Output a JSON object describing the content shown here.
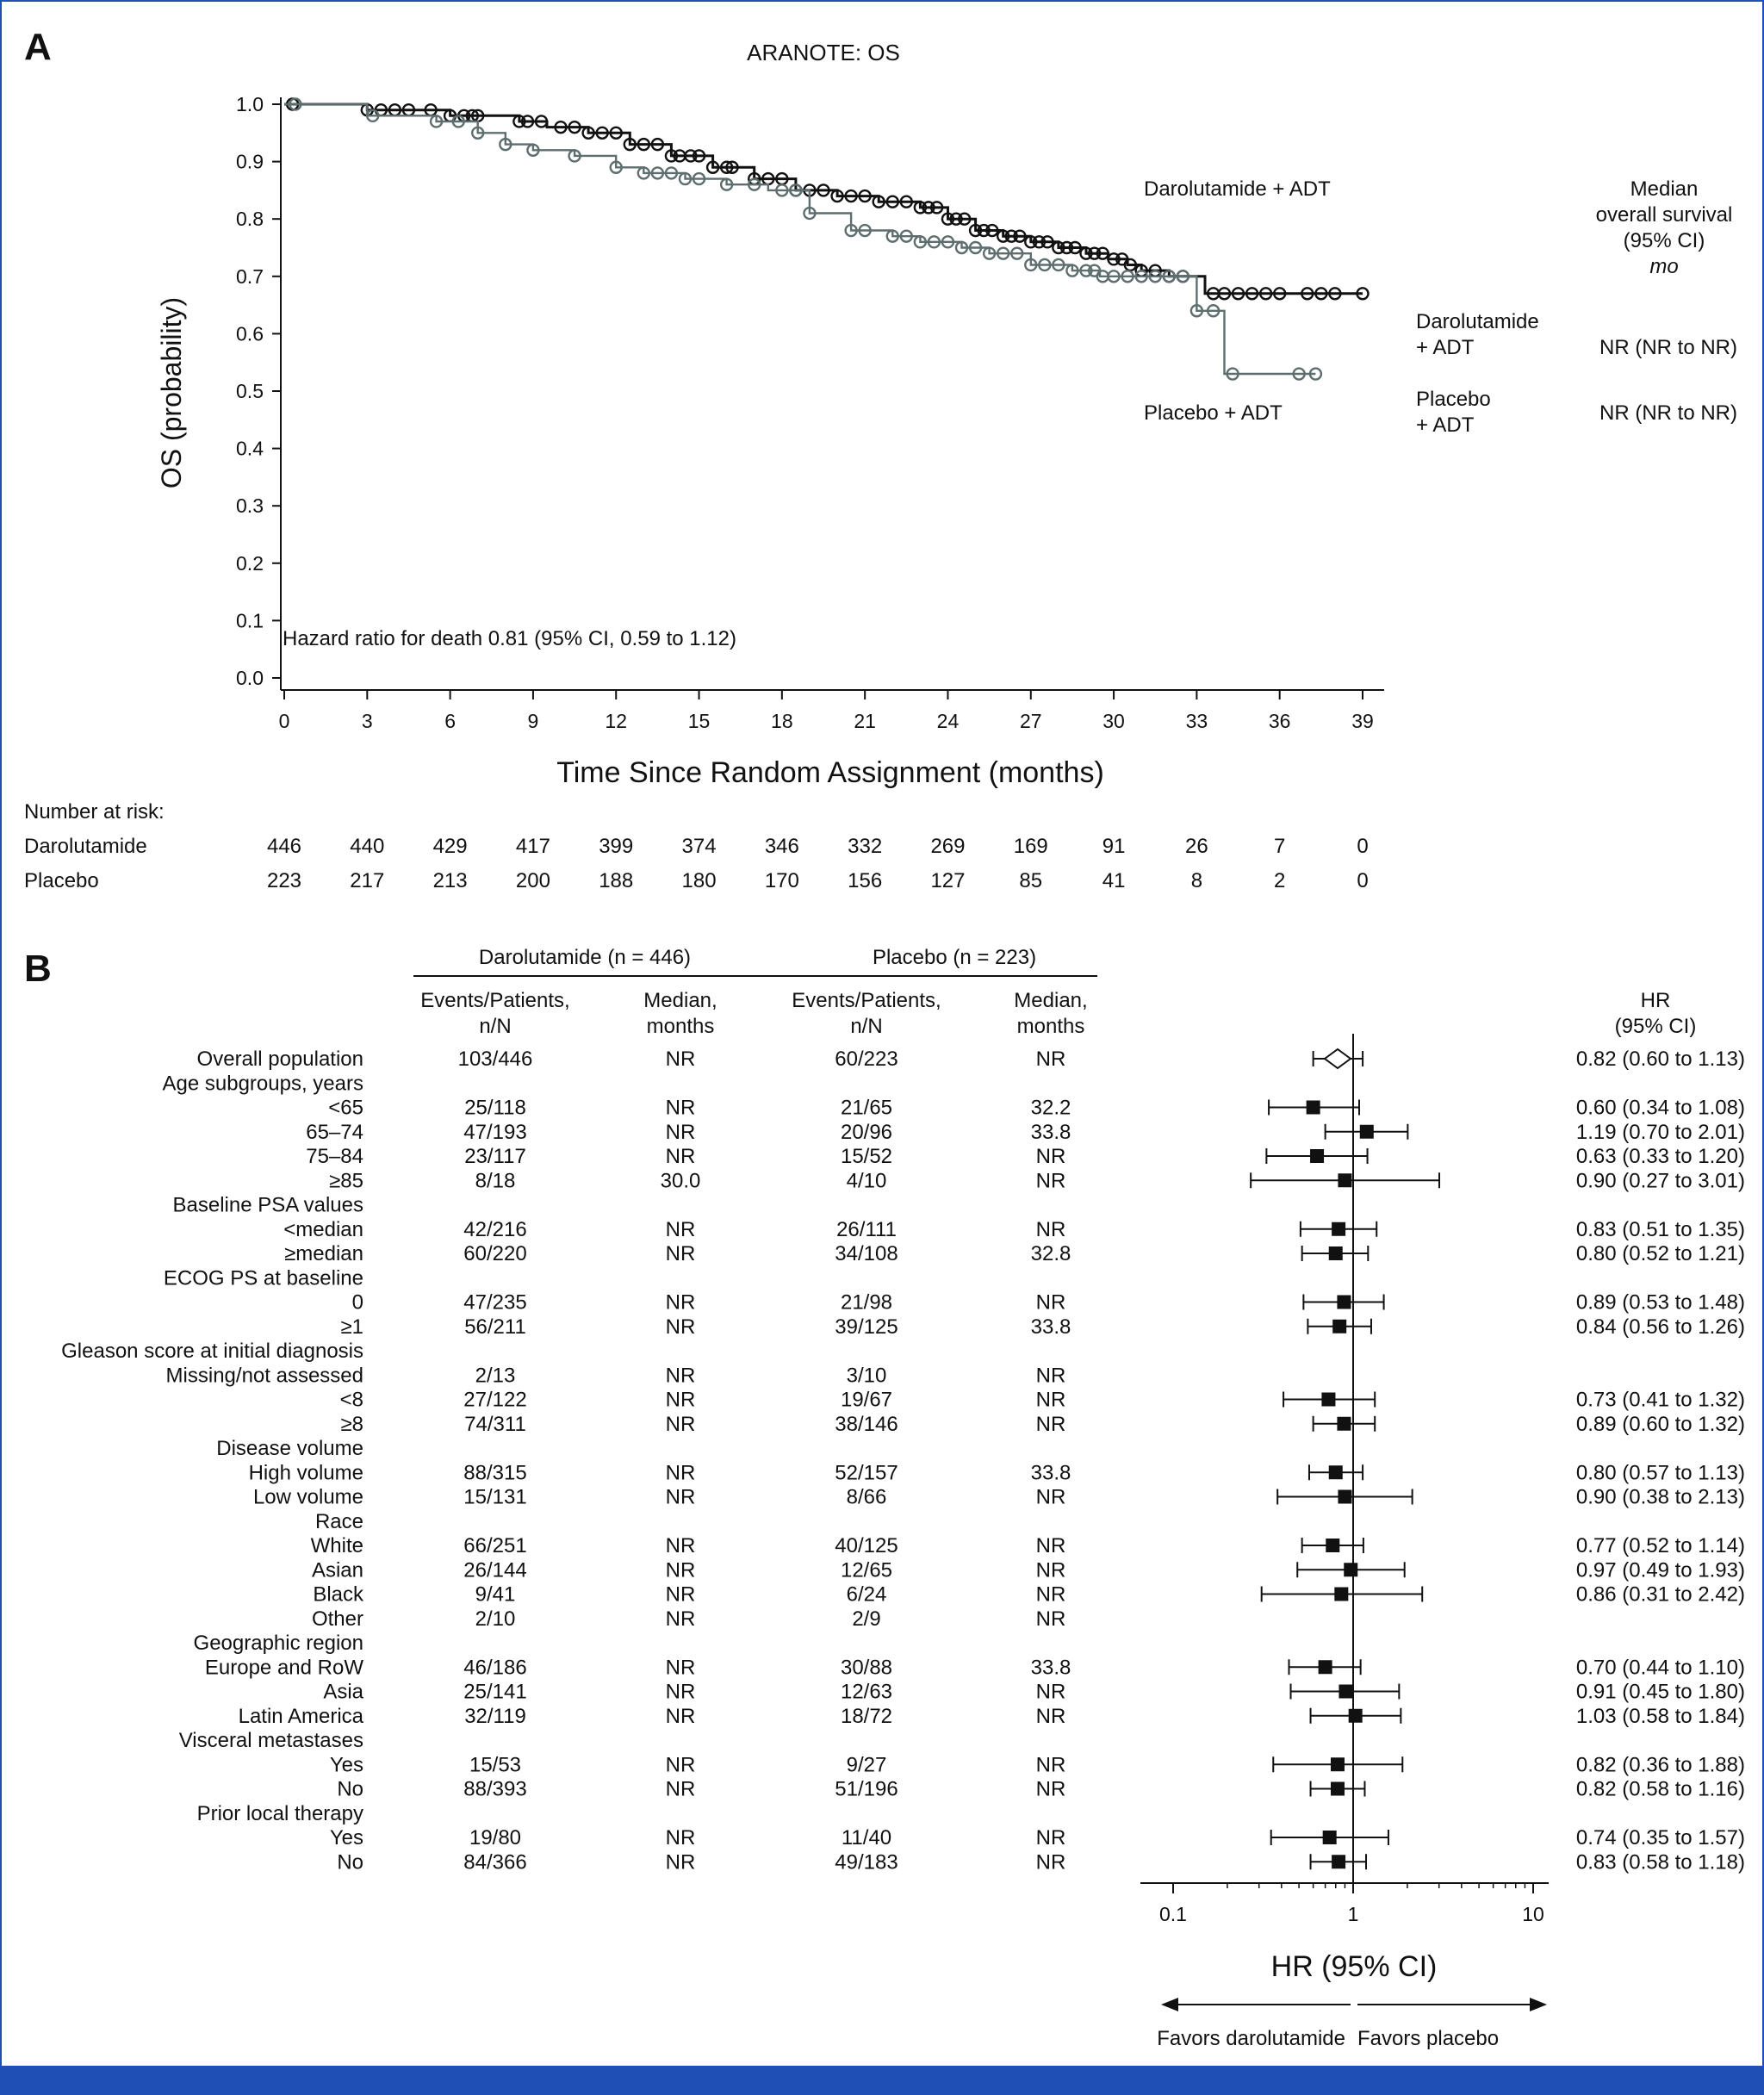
{
  "colors": {
    "darolutamide": "#111111",
    "placebo": "#5e6e6e",
    "frame": "#1f4fb4"
  },
  "panel_a_label": "A",
  "panel_b_label": "B",
  "chart_data": [
    {
      "type": "line",
      "subtype": "kaplan-meier",
      "title": "ARANOTE: OS",
      "xlabel": "Time Since Random Assignment (months)",
      "ylabel": "OS (probability)",
      "xlim": [
        0,
        39
      ],
      "ylim": [
        0.0,
        1.0
      ],
      "xticks": [
        0,
        3,
        6,
        9,
        12,
        15,
        18,
        21,
        24,
        27,
        30,
        33,
        36,
        39
      ],
      "yticks": [
        "0.0",
        "0.1",
        "0.2",
        "0.3",
        "0.4",
        "0.5",
        "0.6",
        "0.7",
        "0.8",
        "0.9",
        "1.0"
      ],
      "series": [
        {
          "name": "Darolutamide + ADT",
          "label_line": "Darolutamide + ADT",
          "x": [
            0,
            3,
            6,
            8.5,
            9.5,
            11,
            12.5,
            14,
            15.5,
            17,
            18.5,
            20,
            21.5,
            23,
            24,
            25,
            26,
            27,
            28,
            29,
            29.8,
            30.5,
            31,
            32,
            33,
            33.3,
            34,
            35,
            36,
            37,
            38,
            39
          ],
          "y": [
            1.0,
            0.99,
            0.98,
            0.97,
            0.96,
            0.95,
            0.93,
            0.91,
            0.89,
            0.87,
            0.85,
            0.84,
            0.83,
            0.82,
            0.8,
            0.78,
            0.77,
            0.76,
            0.75,
            0.74,
            0.73,
            0.72,
            0.71,
            0.7,
            0.7,
            0.67,
            0.67,
            0.67,
            0.67,
            0.67,
            0.67,
            0.67
          ],
          "censor_x": [
            0.3,
            3,
            3.5,
            4,
            4.5,
            5.3,
            6,
            6.5,
            6.8,
            7,
            8.5,
            8.8,
            9.3,
            10,
            10.5,
            11,
            11.5,
            12,
            12.5,
            13,
            13.5,
            14,
            14.3,
            14.7,
            15,
            15.5,
            16,
            16.2,
            17,
            17.5,
            18,
            18.5,
            19,
            19.5,
            20,
            20.5,
            21,
            21.5,
            22,
            22.5,
            23,
            23.3,
            23.6,
            24,
            24.3,
            24.6,
            25,
            25.3,
            25.6,
            26,
            26.3,
            26.6,
            27,
            27.3,
            27.6,
            28,
            28.3,
            28.6,
            29,
            29.3,
            29.6,
            30,
            30.3,
            30.6,
            31,
            31.5,
            32,
            32.5,
            33.6,
            34,
            34.5,
            35,
            35.5,
            36,
            37,
            37.5,
            38,
            39
          ]
        },
        {
          "name": "Placebo + ADT",
          "label_line": "Placebo + ADT",
          "x": [
            0,
            3,
            5.5,
            7,
            8,
            9,
            10.5,
            12,
            13,
            14.5,
            16,
            17.5,
            19,
            20.5,
            22,
            23,
            24.5,
            25.5,
            27,
            28.5,
            29.5,
            31,
            32.5,
            33,
            34,
            37.3
          ],
          "y": [
            1.0,
            0.98,
            0.97,
            0.95,
            0.93,
            0.92,
            0.91,
            0.89,
            0.88,
            0.87,
            0.86,
            0.85,
            0.81,
            0.78,
            0.77,
            0.76,
            0.75,
            0.74,
            0.72,
            0.71,
            0.7,
            0.7,
            0.7,
            0.64,
            0.53,
            0.53
          ],
          "censor_x": [
            0.4,
            3.2,
            5.5,
            6.3,
            7,
            8,
            9,
            10.5,
            12,
            13,
            13.5,
            14,
            14.5,
            15,
            16,
            17,
            18,
            18.5,
            19,
            20.5,
            21,
            22,
            22.5,
            23,
            23.5,
            24,
            24.5,
            25,
            25.5,
            26,
            26.5,
            27,
            27.5,
            28,
            28.5,
            29,
            29.3,
            29.6,
            30,
            30.5,
            31,
            31.5,
            32,
            32.5,
            33,
            33.6,
            34.3,
            36.7,
            37.3
          ]
        }
      ],
      "hazard_ratio_text": "Hazard ratio for death 0.81 (95% CI, 0.59 to 1.12)",
      "median_header": [
        "Median",
        "overall survival",
        "(95% CI)",
        "mo"
      ],
      "median_rows": [
        {
          "arm": [
            "Darolutamide",
            "+ ADT"
          ],
          "value": "NR (NR to NR)"
        },
        {
          "arm": [
            "Placebo",
            "+ ADT"
          ],
          "value": "NR (NR to NR)"
        }
      ],
      "risk_table": {
        "title": "Number at risk:",
        "rows": [
          {
            "label": "Darolutamide",
            "values": [
              "446",
              "440",
              "429",
              "417",
              "399",
              "374",
              "346",
              "332",
              "269",
              "169",
              "91",
              "26",
              "7",
              "0"
            ]
          },
          {
            "label": "Placebo",
            "values": [
              "223",
              "217",
              "213",
              "200",
              "188",
              "180",
              "170",
              "156",
              "127",
              "85",
              "41",
              "8",
              "2",
              "0"
            ]
          }
        ]
      }
    },
    {
      "type": "forest",
      "headers": {
        "dar_group": "Darolutamide (n = 446)",
        "pla_group": "Placebo (n = 223)",
        "events_1": "Events/Patients,",
        "events_2": "n/N",
        "median_1": "Median,",
        "median_2": "months",
        "hr_1": "HR",
        "hr_2": "(95% CI)"
      },
      "xscale": "log",
      "xticks": [
        {
          "value": 0.1,
          "label": "0.1"
        },
        {
          "value": 1,
          "label": "1"
        },
        {
          "value": 10,
          "label": "10"
        }
      ],
      "xlabel": "HR (95% CI)",
      "favors_left": "Favors darolutamide",
      "favors_right": "Favors placebo",
      "rows": [
        {
          "label": "Overall population",
          "de": "103/446",
          "dm": "NR",
          "pe": "60/223",
          "pm": "NR",
          "hr": 0.82,
          "lo": 0.6,
          "hi": 1.13,
          "hr_text": "0.82 (0.60 to 1.13)",
          "diamond": true
        },
        {
          "label": "Age subgroups, years"
        },
        {
          "label": "<65",
          "de": "25/118",
          "dm": "NR",
          "pe": "21/65",
          "pm": "32.2",
          "hr": 0.6,
          "lo": 0.34,
          "hi": 1.08,
          "hr_text": "0.60 (0.34 to 1.08)"
        },
        {
          "label": "65–74",
          "de": "47/193",
          "dm": "NR",
          "pe": "20/96",
          "pm": "33.8",
          "hr": 1.19,
          "lo": 0.7,
          "hi": 2.01,
          "hr_text": "1.19 (0.70 to 2.01)"
        },
        {
          "label": "75–84",
          "de": "23/117",
          "dm": "NR",
          "pe": "15/52",
          "pm": "NR",
          "hr": 0.63,
          "lo": 0.33,
          "hi": 1.2,
          "hr_text": "0.63 (0.33 to 1.20)"
        },
        {
          "label": "≥85",
          "de": "8/18",
          "dm": "30.0",
          "pe": "4/10",
          "pm": "NR",
          "hr": 0.9,
          "lo": 0.27,
          "hi": 3.01,
          "hr_text": "0.90 (0.27 to 3.01)"
        },
        {
          "label": "Baseline PSA values"
        },
        {
          "label": "<median",
          "de": "42/216",
          "dm": "NR",
          "pe": "26/111",
          "pm": "NR",
          "hr": 0.83,
          "lo": 0.51,
          "hi": 1.35,
          "hr_text": "0.83 (0.51 to 1.35)"
        },
        {
          "label": "≥median",
          "de": "60/220",
          "dm": "NR",
          "pe": "34/108",
          "pm": "32.8",
          "hr": 0.8,
          "lo": 0.52,
          "hi": 1.21,
          "hr_text": "0.80 (0.52 to 1.21)"
        },
        {
          "label": "ECOG PS at baseline"
        },
        {
          "label": "0",
          "de": "47/235",
          "dm": "NR",
          "pe": "21/98",
          "pm": "NR",
          "hr": 0.89,
          "lo": 0.53,
          "hi": 1.48,
          "hr_text": "0.89 (0.53 to 1.48)"
        },
        {
          "label": "≥1",
          "de": "56/211",
          "dm": "NR",
          "pe": "39/125",
          "pm": "33.8",
          "hr": 0.84,
          "lo": 0.56,
          "hi": 1.26,
          "hr_text": "0.84 (0.56 to 1.26)"
        },
        {
          "label": "Gleason score at initial diagnosis"
        },
        {
          "label": "Missing/not assessed",
          "de": "2/13",
          "dm": "NR",
          "pe": "3/10",
          "pm": "NR"
        },
        {
          "label": "<8",
          "de": "27/122",
          "dm": "NR",
          "pe": "19/67",
          "pm": "NR",
          "hr": 0.73,
          "lo": 0.41,
          "hi": 1.32,
          "hr_text": "0.73 (0.41 to 1.32)"
        },
        {
          "label": "≥8",
          "de": "74/311",
          "dm": "NR",
          "pe": "38/146",
          "pm": "NR",
          "hr": 0.89,
          "lo": 0.6,
          "hi": 1.32,
          "hr_text": "0.89 (0.60 to 1.32)"
        },
        {
          "label": "Disease volume"
        },
        {
          "label": "High volume",
          "de": "88/315",
          "dm": "NR",
          "pe": "52/157",
          "pm": "33.8",
          "hr": 0.8,
          "lo": 0.57,
          "hi": 1.13,
          "hr_text": "0.80 (0.57 to 1.13)"
        },
        {
          "label": "Low volume",
          "de": "15/131",
          "dm": "NR",
          "pe": "8/66",
          "pm": "NR",
          "hr": 0.9,
          "lo": 0.38,
          "hi": 2.13,
          "hr_text": "0.90 (0.38 to 2.13)"
        },
        {
          "label": "Race"
        },
        {
          "label": "White",
          "de": "66/251",
          "dm": "NR",
          "pe": "40/125",
          "pm": "NR",
          "hr": 0.77,
          "lo": 0.52,
          "hi": 1.14,
          "hr_text": "0.77 (0.52 to 1.14)"
        },
        {
          "label": "Asian",
          "de": "26/144",
          "dm": "NR",
          "pe": "12/65",
          "pm": "NR",
          "hr": 0.97,
          "lo": 0.49,
          "hi": 1.93,
          "hr_text": "0.97 (0.49 to 1.93)"
        },
        {
          "label": "Black",
          "de": "9/41",
          "dm": "NR",
          "pe": "6/24",
          "pm": "NR",
          "hr": 0.86,
          "lo": 0.31,
          "hi": 2.42,
          "hr_text": "0.86 (0.31 to 2.42)"
        },
        {
          "label": "Other",
          "de": "2/10",
          "dm": "NR",
          "pe": "2/9",
          "pm": "NR"
        },
        {
          "label": "Geographic region"
        },
        {
          "label": "Europe and RoW",
          "de": "46/186",
          "dm": "NR",
          "pe": "30/88",
          "pm": "33.8",
          "hr": 0.7,
          "lo": 0.44,
          "hi": 1.1,
          "hr_text": "0.70 (0.44 to 1.10)"
        },
        {
          "label": "Asia",
          "de": "25/141",
          "dm": "NR",
          "pe": "12/63",
          "pm": "NR",
          "hr": 0.91,
          "lo": 0.45,
          "hi": 1.8,
          "hr_text": "0.91 (0.45 to 1.80)"
        },
        {
          "label": "Latin America",
          "de": "32/119",
          "dm": "NR",
          "pe": "18/72",
          "pm": "NR",
          "hr": 1.03,
          "lo": 0.58,
          "hi": 1.84,
          "hr_text": "1.03 (0.58 to 1.84)"
        },
        {
          "label": "Visceral metastases"
        },
        {
          "label": "Yes",
          "de": "15/53",
          "dm": "NR",
          "pe": "9/27",
          "pm": "NR",
          "hr": 0.82,
          "lo": 0.36,
          "hi": 1.88,
          "hr_text": "0.82 (0.36 to 1.88)"
        },
        {
          "label": "No",
          "de": "88/393",
          "dm": "NR",
          "pe": "51/196",
          "pm": "NR",
          "hr": 0.82,
          "lo": 0.58,
          "hi": 1.16,
          "hr_text": "0.82 (0.58 to 1.16)"
        },
        {
          "label": "Prior local therapy"
        },
        {
          "label": "Yes",
          "de": "19/80",
          "dm": "NR",
          "pe": "11/40",
          "pm": "NR",
          "hr": 0.74,
          "lo": 0.35,
          "hi": 1.57,
          "hr_text": "0.74 (0.35 to 1.57)"
        },
        {
          "label": "No",
          "de": "84/366",
          "dm": "NR",
          "pe": "49/183",
          "pm": "NR",
          "hr": 0.83,
          "lo": 0.58,
          "hi": 1.18,
          "hr_text": "0.83 (0.58 to 1.18)"
        }
      ]
    }
  ]
}
